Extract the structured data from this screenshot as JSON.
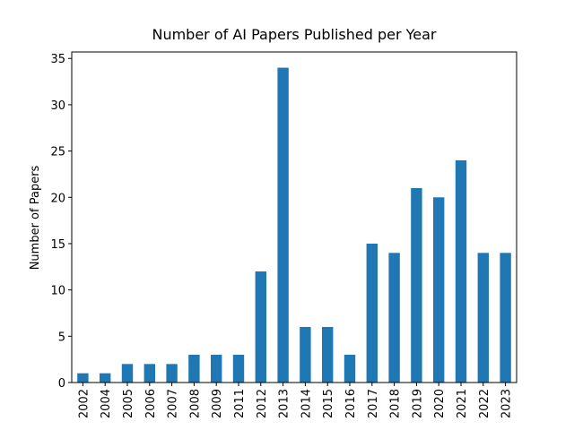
{
  "chart_data": {
    "type": "bar",
    "title": "Number of AI Papers Published per Year",
    "y_label": "Number of Papers",
    "categories": [
      "2002",
      "2004",
      "2005",
      "2006",
      "2007",
      "2008",
      "2009",
      "2011",
      "2012",
      "2013",
      "2014",
      "2015",
      "2016",
      "2017",
      "2018",
      "2019",
      "2020",
      "2021",
      "2022",
      "2023"
    ],
    "values": [
      1,
      1,
      2,
      2,
      2,
      3,
      3,
      3,
      12,
      34,
      6,
      6,
      3,
      15,
      14,
      21,
      20,
      24,
      14,
      14
    ],
    "color": "#1f77b4",
    "ylim": [
      0,
      35.7
    ],
    "yticks": [
      0,
      5,
      10,
      15,
      20,
      25,
      30,
      35
    ],
    "grid": false
  }
}
